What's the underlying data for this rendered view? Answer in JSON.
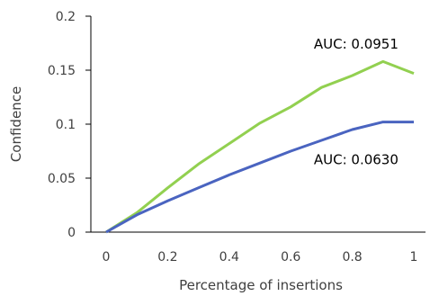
{
  "chart_data": {
    "type": "line",
    "title": "",
    "xlabel": "Percentage of insertions",
    "ylabel": "Confidence",
    "xlim": [
      0,
      1
    ],
    "ylim": [
      0,
      0.2
    ],
    "grid": false,
    "x_ticks": [
      "0",
      "0.2",
      "0.4",
      "0.6",
      "0.8",
      "1"
    ],
    "y_ticks": [
      "0",
      "0.05",
      "0.1",
      "0.15",
      "0.2"
    ],
    "x": [
      0,
      0.1,
      0.2,
      0.3,
      0.4,
      0.5,
      0.6,
      0.7,
      0.8,
      0.9,
      1.0
    ],
    "series": [
      {
        "color": "#92d050",
        "values": [
          0,
          0.018,
          0.041,
          0.063,
          0.082,
          0.101,
          0.116,
          0.134,
          0.145,
          0.158,
          0.147
        ]
      },
      {
        "color": "#4a64c0",
        "values": [
          0,
          0.016,
          0.029,
          0.041,
          0.053,
          0.064,
          0.075,
          0.085,
          0.095,
          0.102,
          0.102
        ]
      }
    ],
    "annotations": [
      {
        "text": "AUC: 0.0951",
        "x": 0.95,
        "y": 0.17
      },
      {
        "text": "AUC: 0.0630",
        "x": 0.95,
        "y": 0.063
      }
    ]
  }
}
